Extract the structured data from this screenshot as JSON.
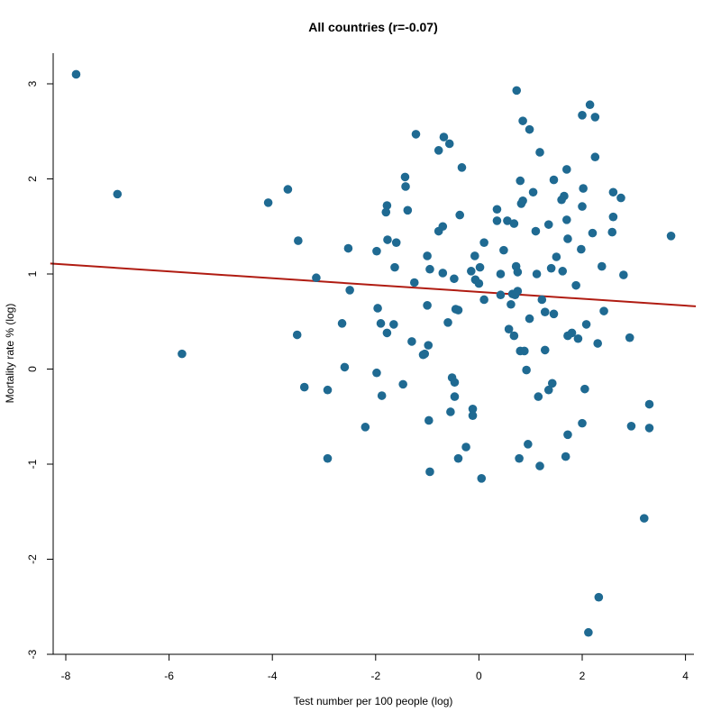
{
  "chart_data": {
    "type": "scatter",
    "title": "All countries (r=-0.07)",
    "xlabel": "Test number per 100 people (log)",
    "ylabel": "Mortality rate % (log)",
    "xlim": [
      -8.3,
      4.2
    ],
    "ylim": [
      -3,
      3.3
    ],
    "xticks": [
      -8,
      -6,
      -4,
      -2,
      0,
      2,
      4
    ],
    "yticks": [
      -3,
      -2,
      -1,
      0,
      1,
      2,
      3
    ],
    "colors": {
      "points": "#1f6a92",
      "fit_line": "#b01c12"
    },
    "fit_line": {
      "x": [
        -8.3,
        4.2
      ],
      "y": [
        1.11,
        0.66
      ]
    },
    "points": [
      [
        -7.8,
        3.1
      ],
      [
        -7.0,
        1.84
      ],
      [
        -5.75,
        0.16
      ],
      [
        -4.08,
        1.75
      ],
      [
        -3.7,
        1.89
      ],
      [
        -3.5,
        1.35
      ],
      [
        -3.52,
        0.36
      ],
      [
        -3.38,
        -0.19
      ],
      [
        -3.15,
        0.96
      ],
      [
        -2.93,
        -0.22
      ],
      [
        -2.93,
        -0.94
      ],
      [
        -2.65,
        0.48
      ],
      [
        -2.6,
        0.02
      ],
      [
        -2.53,
        1.27
      ],
      [
        -2.5,
        0.83
      ],
      [
        -2.2,
        -0.61
      ],
      [
        -1.98,
        1.24
      ],
      [
        -1.96,
        0.64
      ],
      [
        -1.98,
        -0.04
      ],
      [
        -1.9,
        0.48
      ],
      [
        -1.88,
        -0.28
      ],
      [
        -1.78,
        0.38
      ],
      [
        -1.77,
        1.36
      ],
      [
        -1.78,
        1.72
      ],
      [
        -1.8,
        1.65
      ],
      [
        -1.65,
        0.47
      ],
      [
        -1.63,
        1.07
      ],
      [
        -1.6,
        1.33
      ],
      [
        -1.43,
        2.02
      ],
      [
        -1.42,
        1.92
      ],
      [
        -1.38,
        1.67
      ],
      [
        -1.47,
        -0.16
      ],
      [
        -1.3,
        0.29
      ],
      [
        -1.25,
        0.91
      ],
      [
        -1.22,
        2.47
      ],
      [
        -1.08,
        0.15
      ],
      [
        -1.05,
        0.16
      ],
      [
        -1.0,
        1.19
      ],
      [
        -1.0,
        0.67
      ],
      [
        -0.98,
        0.25
      ],
      [
        -0.97,
        -0.54
      ],
      [
        -0.95,
        -1.08
      ],
      [
        -0.95,
        1.05
      ],
      [
        -0.78,
        2.3
      ],
      [
        -0.78,
        1.45
      ],
      [
        -0.7,
        1.5
      ],
      [
        -0.68,
        2.44
      ],
      [
        -0.7,
        1.01
      ],
      [
        -0.6,
        0.49
      ],
      [
        -0.57,
        2.37
      ],
      [
        -0.55,
        -0.45
      ],
      [
        -0.52,
        -0.09
      ],
      [
        -0.48,
        0.95
      ],
      [
        -0.47,
        -0.14
      ],
      [
        -0.47,
        -0.29
      ],
      [
        -0.45,
        0.63
      ],
      [
        -0.4,
        0.62
      ],
      [
        -0.4,
        -0.94
      ],
      [
        -0.37,
        1.62
      ],
      [
        -0.33,
        2.12
      ],
      [
        -0.25,
        -0.82
      ],
      [
        -0.15,
        1.03
      ],
      [
        -0.12,
        -0.42
      ],
      [
        -0.12,
        -0.49
      ],
      [
        -0.08,
        1.19
      ],
      [
        -0.07,
        0.94
      ],
      [
        0.0,
        0.9
      ],
      [
        0.02,
        1.07
      ],
      [
        0.05,
        -1.15
      ],
      [
        0.1,
        1.33
      ],
      [
        0.1,
        0.73
      ],
      [
        0.35,
        1.56
      ],
      [
        0.35,
        1.68
      ],
      [
        0.42,
        0.78
      ],
      [
        0.42,
        1.0
      ],
      [
        0.48,
        1.25
      ],
      [
        0.55,
        1.56
      ],
      [
        0.58,
        0.42
      ],
      [
        0.62,
        0.68
      ],
      [
        0.65,
        0.79
      ],
      [
        0.68,
        0.35
      ],
      [
        0.68,
        1.53
      ],
      [
        0.7,
        0.78
      ],
      [
        0.72,
        1.08
      ],
      [
        0.73,
        2.93
      ],
      [
        0.75,
        1.02
      ],
      [
        0.75,
        0.82
      ],
      [
        0.78,
        -0.94
      ],
      [
        0.8,
        1.98
      ],
      [
        0.8,
        0.19
      ],
      [
        0.82,
        1.74
      ],
      [
        0.85,
        2.61
      ],
      [
        0.85,
        1.77
      ],
      [
        0.88,
        0.19
      ],
      [
        0.92,
        -0.01
      ],
      [
        0.95,
        -0.79
      ],
      [
        0.98,
        2.52
      ],
      [
        0.98,
        0.53
      ],
      [
        1.05,
        1.86
      ],
      [
        1.1,
        1.45
      ],
      [
        1.12,
        1.0
      ],
      [
        1.15,
        -0.29
      ],
      [
        1.18,
        2.28
      ],
      [
        1.18,
        -1.02
      ],
      [
        1.22,
        0.73
      ],
      [
        1.28,
        0.6
      ],
      [
        1.28,
        0.2
      ],
      [
        1.35,
        -0.22
      ],
      [
        1.35,
        1.52
      ],
      [
        1.4,
        1.06
      ],
      [
        1.42,
        -0.15
      ],
      [
        1.45,
        0.58
      ],
      [
        1.45,
        1.99
      ],
      [
        1.5,
        1.18
      ],
      [
        1.6,
        1.78
      ],
      [
        1.62,
        1.03
      ],
      [
        1.65,
        1.82
      ],
      [
        1.68,
        -0.92
      ],
      [
        1.7,
        2.1
      ],
      [
        1.7,
        1.57
      ],
      [
        1.72,
        0.35
      ],
      [
        1.72,
        1.37
      ],
      [
        1.72,
        -0.69
      ],
      [
        1.8,
        0.38
      ],
      [
        1.88,
        0.88
      ],
      [
        1.92,
        0.32
      ],
      [
        1.98,
        1.26
      ],
      [
        2.0,
        1.71
      ],
      [
        2.0,
        2.67
      ],
      [
        2.0,
        -0.57
      ],
      [
        2.02,
        1.9
      ],
      [
        2.05,
        -0.21
      ],
      [
        2.08,
        0.47
      ],
      [
        2.12,
        -2.77
      ],
      [
        2.15,
        2.78
      ],
      [
        2.2,
        1.43
      ],
      [
        2.25,
        2.65
      ],
      [
        2.25,
        2.23
      ],
      [
        2.3,
        0.27
      ],
      [
        2.32,
        -2.4
      ],
      [
        2.38,
        1.08
      ],
      [
        2.42,
        0.61
      ],
      [
        2.58,
        1.44
      ],
      [
        2.6,
        1.86
      ],
      [
        2.6,
        1.6
      ],
      [
        2.75,
        1.8
      ],
      [
        2.8,
        0.99
      ],
      [
        2.92,
        0.33
      ],
      [
        2.95,
        -0.6
      ],
      [
        3.2,
        -1.57
      ],
      [
        3.3,
        -0.37
      ],
      [
        3.3,
        -0.62
      ],
      [
        3.72,
        1.4
      ]
    ]
  }
}
